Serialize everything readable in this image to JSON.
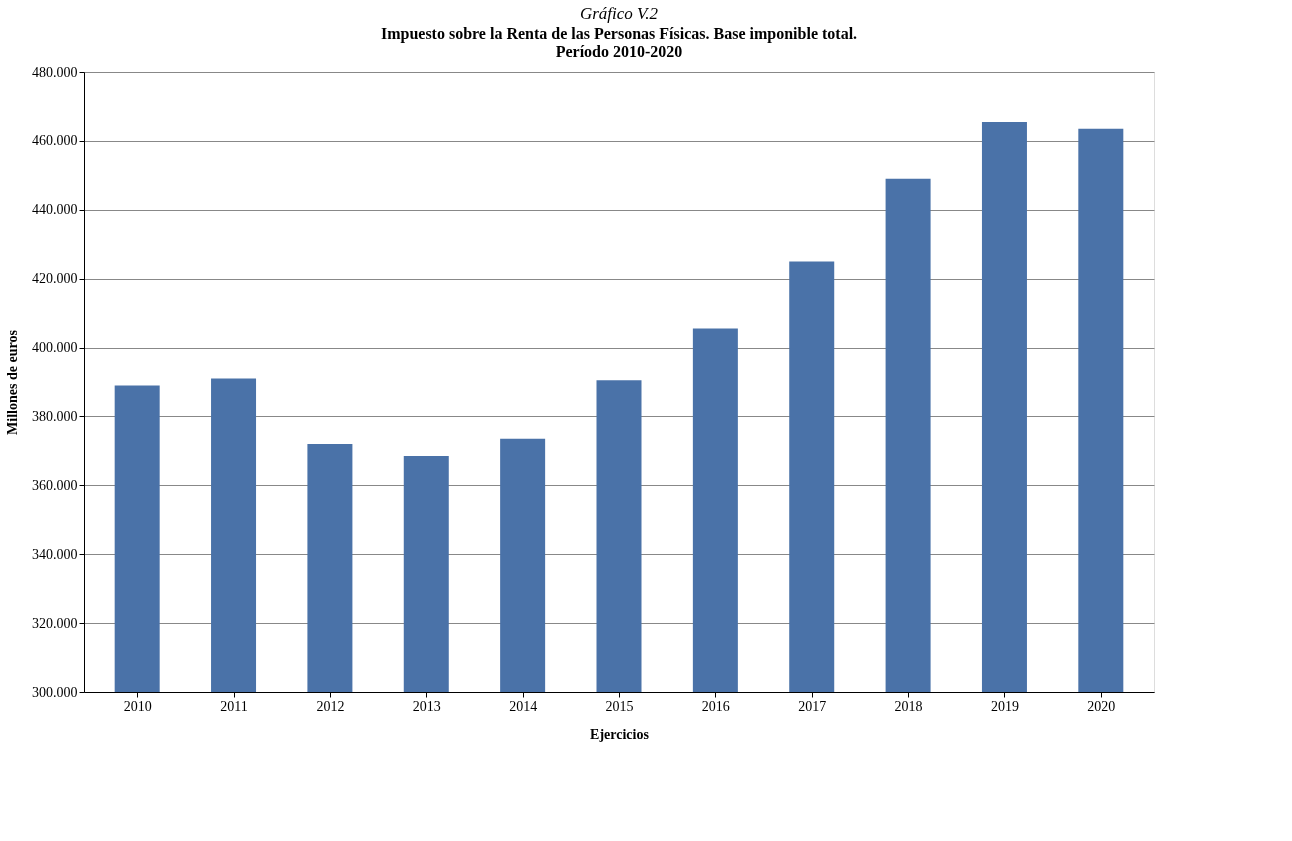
{
  "chart_data": {
    "type": "bar",
    "title": "Gráfico V.2",
    "subtitle": "Impuesto sobre la Renta de las Personas Físicas.  Base imponible total.\nPeríodo 2010-2020",
    "xlabel": "Ejercicios",
    "ylabel": "Millones de euros",
    "categories": [
      "2010",
      "2011",
      "2012",
      "2013",
      "2014",
      "2015",
      "2016",
      "2017",
      "2018",
      "2019",
      "2020"
    ],
    "values": [
      389000,
      391000,
      372000,
      368500,
      373500,
      390500,
      405500,
      425000,
      449000,
      465500,
      463500
    ],
    "color": "#4a72a8",
    "ylim": [
      300000,
      480000
    ],
    "yticks": [
      {
        "value": 300000,
        "label": "300.000"
      },
      {
        "value": 320000,
        "label": "320.000"
      },
      {
        "value": 340000,
        "label": "340.000"
      },
      {
        "value": 360000,
        "label": "360.000"
      },
      {
        "value": 380000,
        "label": "380.000"
      },
      {
        "value": 400000,
        "label": "400.000"
      },
      {
        "value": 420000,
        "label": "420.000"
      },
      {
        "value": 440000,
        "label": "440.000"
      },
      {
        "value": 460000,
        "label": "460.000"
      },
      {
        "value": 480000,
        "label": "480.000"
      }
    ],
    "grid": "y"
  }
}
